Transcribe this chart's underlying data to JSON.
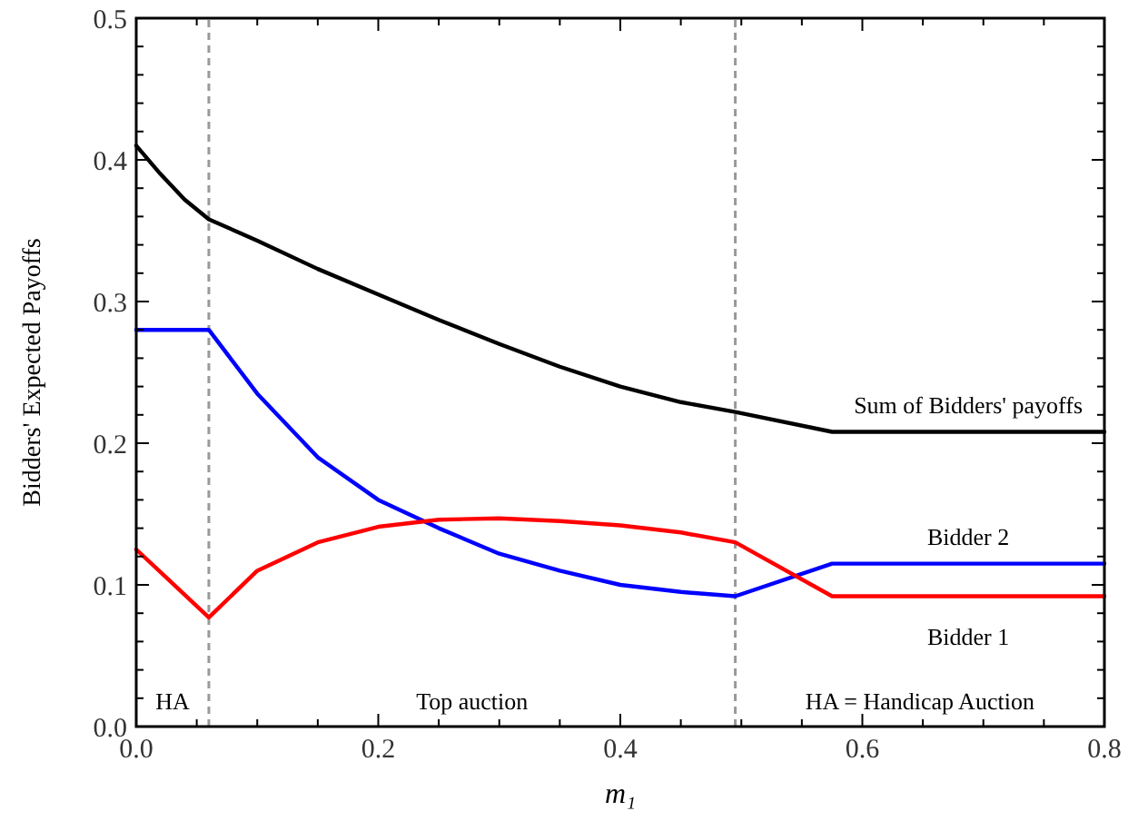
{
  "chart_data": {
    "type": "line",
    "xlabel": "m₁",
    "ylabel": "Bidders' Expected Payoffs",
    "x": [
      0,
      0.02,
      0.04,
      0.06,
      0.1,
      0.15,
      0.2,
      0.25,
      0.3,
      0.35,
      0.4,
      0.45,
      0.495,
      0.575,
      0.8
    ],
    "series": [
      {
        "name": "Sum of Bidders' payoffs",
        "color": "#000000",
        "values": [
          0.41,
          0.39,
          0.372,
          0.358,
          0.343,
          0.323,
          0.305,
          0.287,
          0.27,
          0.254,
          0.24,
          0.229,
          0.222,
          0.208,
          0.208
        ]
      },
      {
        "name": "Bidder 2",
        "color": "#0000ff",
        "values": [
          0.28,
          0.28,
          0.28,
          0.28,
          0.235,
          0.19,
          0.16,
          0.14,
          0.122,
          0.11,
          0.1,
          0.095,
          0.092,
          0.115,
          0.115
        ]
      },
      {
        "name": "Bidder 1",
        "color": "#ff0000",
        "values": [
          0.125,
          0.109,
          0.093,
          0.077,
          0.11,
          0.13,
          0.141,
          0.146,
          0.147,
          0.145,
          0.142,
          0.137,
          0.13,
          0.092,
          0.092
        ]
      }
    ],
    "xlim": [
      0,
      0.8
    ],
    "ylim": [
      0,
      0.5
    ],
    "xticks": [
      {
        "value": 0,
        "label": "0.0"
      },
      {
        "value": 0.05,
        "label": null
      },
      {
        "value": 0.1,
        "label": null
      },
      {
        "value": 0.15,
        "label": null
      },
      {
        "value": 0.2,
        "label": "0.2"
      },
      {
        "value": 0.25,
        "label": null
      },
      {
        "value": 0.3,
        "label": null
      },
      {
        "value": 0.35,
        "label": null
      },
      {
        "value": 0.4,
        "label": "0.4"
      },
      {
        "value": 0.45,
        "label": null
      },
      {
        "value": 0.5,
        "label": null
      },
      {
        "value": 0.55,
        "label": null
      },
      {
        "value": 0.6,
        "label": "0.6"
      },
      {
        "value": 0.65,
        "label": null
      },
      {
        "value": 0.7,
        "label": null
      },
      {
        "value": 0.75,
        "label": null
      },
      {
        "value": 0.8,
        "label": "0.8"
      }
    ],
    "yticks": [
      {
        "value": 0,
        "label": "0.0"
      },
      {
        "value": 0.02,
        "label": null
      },
      {
        "value": 0.04,
        "label": null
      },
      {
        "value": 0.06,
        "label": null
      },
      {
        "value": 0.08,
        "label": null
      },
      {
        "value": 0.1,
        "label": "0.1"
      },
      {
        "value": 0.12,
        "label": null
      },
      {
        "value": 0.14,
        "label": null
      },
      {
        "value": 0.16,
        "label": null
      },
      {
        "value": 0.18,
        "label": null
      },
      {
        "value": 0.2,
        "label": "0.2"
      },
      {
        "value": 0.22,
        "label": null
      },
      {
        "value": 0.24,
        "label": null
      },
      {
        "value": 0.26,
        "label": null
      },
      {
        "value": 0.28,
        "label": null
      },
      {
        "value": 0.3,
        "label": "0.3"
      },
      {
        "value": 0.32,
        "label": null
      },
      {
        "value": 0.34,
        "label": null
      },
      {
        "value": 0.36,
        "label": null
      },
      {
        "value": 0.38,
        "label": null
      },
      {
        "value": 0.4,
        "label": "0.4"
      },
      {
        "value": 0.42,
        "label": null
      },
      {
        "value": 0.44,
        "label": null
      },
      {
        "value": 0.46,
        "label": null
      },
      {
        "value": 0.48,
        "label": null
      },
      {
        "value": 0.5,
        "label": "0.5"
      }
    ],
    "ref_lines": [
      {
        "axis": "x",
        "value": 0.06,
        "color": "#999999",
        "line_style": "dashed"
      },
      {
        "axis": "x",
        "value": 0.495,
        "color": "#999999",
        "line_style": "dashed"
      }
    ],
    "annotations": [
      "HA",
      "Top auction",
      "HA = Handicap Auction"
    ],
    "grid": false,
    "marker": "none",
    "line_style": "solid"
  }
}
